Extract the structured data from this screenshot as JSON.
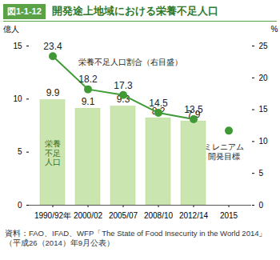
{
  "chart_data": {
    "type": "bar",
    "figure_number": "図1-1-12",
    "title": "開発途上地域における栄養不足人口",
    "source": "資料：FAO、IFAD、WFP「The State of Food Insecurity in the World 2014」（平成26（2014）年9月公表）",
    "ylabel": "億人",
    "y2label": "%",
    "categories": [
      "1990/92年",
      "2000/02",
      "2005/07",
      "2008/10",
      "2012/14",
      "2015"
    ],
    "ylim": [
      0,
      15
    ],
    "yticks": [
      0,
      5,
      10,
      15
    ],
    "y2lim": [
      0,
      25
    ],
    "y2ticks": [
      0,
      5,
      10,
      15,
      20,
      25
    ],
    "series": [
      {
        "name": "栄養不足人口",
        "type": "bar",
        "color": "#cbe5b0",
        "data_labels": true,
        "values": [
          9.9,
          9.1,
          9.3,
          8.2,
          7.9,
          null
        ]
      },
      {
        "name": "栄養不足人口割合（右目盛）",
        "type": "line",
        "axis": "y2",
        "color": "#3f9a36",
        "marker": "circle",
        "data_labels": true,
        "values": [
          23.4,
          18.2,
          17.3,
          14.5,
          13.5,
          null
        ]
      },
      {
        "name": "ミレニアム開発目標",
        "type": "scatter",
        "axis": "y2",
        "color": "#3f9a36",
        "marker": "circle",
        "values": [
          null,
          null,
          null,
          null,
          null,
          11.7
        ]
      }
    ]
  }
}
